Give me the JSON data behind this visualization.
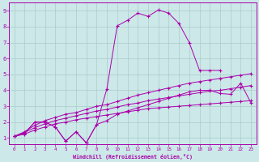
{
  "xlabel": "Windchill (Refroidissement éolien,°C)",
  "bg_color": "#cce8e8",
  "line_color": "#aa00aa",
  "grid_color": "#aacccc",
  "xlim": [
    -0.5,
    23.5
  ],
  "ylim": [
    0.6,
    9.5
  ],
  "xticks": [
    0,
    1,
    2,
    3,
    4,
    5,
    6,
    7,
    8,
    9,
    10,
    11,
    12,
    13,
    14,
    15,
    16,
    17,
    18,
    19,
    20,
    21,
    22,
    23
  ],
  "yticks": [
    1,
    2,
    3,
    4,
    5,
    6,
    7,
    8,
    9
  ],
  "line_spiky_x": [
    0,
    1,
    2,
    3,
    4,
    5,
    6,
    7,
    8,
    9,
    10,
    11,
    12,
    13,
    14,
    15,
    16,
    17,
    18,
    19,
    20
  ],
  "line_spiky_y": [
    1.1,
    1.3,
    2.0,
    2.0,
    1.7,
    0.8,
    1.4,
    0.7,
    1.85,
    4.1,
    8.05,
    8.4,
    8.85,
    8.65,
    9.05,
    8.85,
    8.2,
    7.0,
    5.25,
    5.25,
    5.25
  ],
  "line_jagged_x": [
    0,
    1,
    2,
    3,
    4,
    5,
    6,
    7,
    8,
    9,
    10,
    11,
    12,
    13,
    14,
    15,
    16,
    17,
    18,
    19,
    20,
    21,
    22,
    23
  ],
  "line_jagged_y": [
    1.1,
    1.3,
    2.0,
    2.0,
    1.7,
    0.8,
    1.4,
    0.7,
    1.85,
    2.1,
    2.5,
    2.7,
    2.9,
    3.1,
    3.3,
    3.5,
    3.7,
    3.9,
    4.0,
    4.0,
    3.8,
    3.75,
    4.45,
    3.2
  ],
  "line_smooth1_x": [
    0,
    1,
    2,
    3,
    4,
    5,
    6,
    7,
    8,
    9,
    10,
    11,
    12,
    13,
    14,
    15,
    16,
    17,
    18,
    19,
    20,
    21,
    22,
    23
  ],
  "line_smooth1_y": [
    1.1,
    1.4,
    1.8,
    2.1,
    2.3,
    2.5,
    2.6,
    2.8,
    3.0,
    3.1,
    3.3,
    3.5,
    3.7,
    3.85,
    4.0,
    4.15,
    4.3,
    4.45,
    4.55,
    4.65,
    4.75,
    4.85,
    4.95,
    5.05
  ],
  "line_smooth2_x": [
    0,
    1,
    2,
    3,
    4,
    5,
    6,
    7,
    8,
    9,
    10,
    11,
    12,
    13,
    14,
    15,
    16,
    17,
    18,
    19,
    20,
    21,
    22,
    23
  ],
  "line_smooth2_y": [
    1.1,
    1.35,
    1.65,
    1.9,
    2.1,
    2.25,
    2.4,
    2.55,
    2.7,
    2.8,
    2.95,
    3.1,
    3.2,
    3.35,
    3.45,
    3.55,
    3.65,
    3.75,
    3.85,
    3.95,
    4.0,
    4.1,
    4.2,
    4.3
  ],
  "line_smooth3_x": [
    0,
    1,
    2,
    3,
    4,
    5,
    6,
    7,
    8,
    9,
    10,
    11,
    12,
    13,
    14,
    15,
    16,
    17,
    18,
    19,
    20,
    21,
    22,
    23
  ],
  "line_smooth3_y": [
    1.1,
    1.25,
    1.5,
    1.7,
    1.9,
    2.0,
    2.15,
    2.25,
    2.35,
    2.45,
    2.55,
    2.65,
    2.75,
    2.85,
    2.9,
    2.95,
    3.0,
    3.05,
    3.1,
    3.15,
    3.2,
    3.25,
    3.3,
    3.35
  ]
}
